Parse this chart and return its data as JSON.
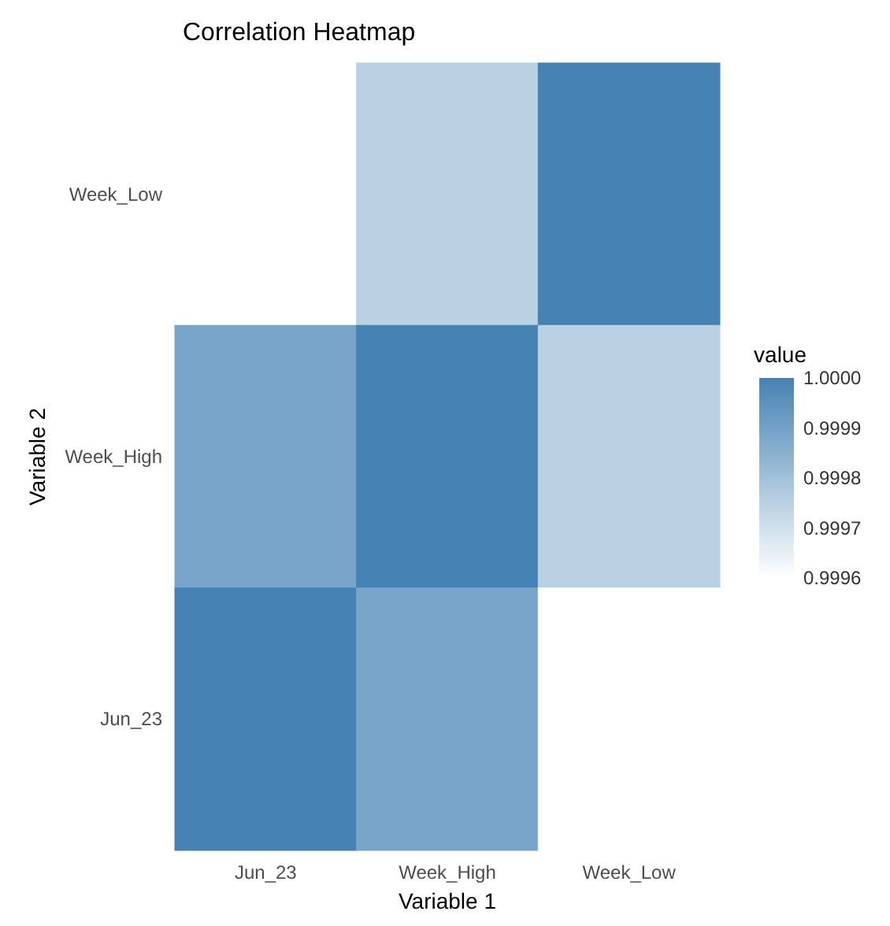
{
  "chart_data": {
    "type": "heatmap",
    "title": "Correlation Heatmap",
    "xlabel": "Variable 1",
    "ylabel": "Variable 2",
    "clabel": "value",
    "categories": [
      "Jun_23",
      "Week_High",
      "Week_Low"
    ],
    "y_categories": [
      "Week_Low",
      "Week_High",
      "Jun_23"
    ],
    "cells": [
      [
        0.9996,
        0.99975,
        1.0
      ],
      [
        0.99989,
        1.0,
        0.99975
      ],
      [
        1.0,
        0.99989,
        0.9996
      ]
    ],
    "clim": [
      0.9996,
      1.0
    ],
    "cticks": [
      {
        "value": 0.9996,
        "label": "0.9996"
      },
      {
        "value": 0.9997,
        "label": "0.9997"
      },
      {
        "value": 0.9998,
        "label": "0.9998"
      },
      {
        "value": 0.9999,
        "label": "0.9999"
      },
      {
        "value": 1.0,
        "label": "1.0000"
      }
    ]
  }
}
